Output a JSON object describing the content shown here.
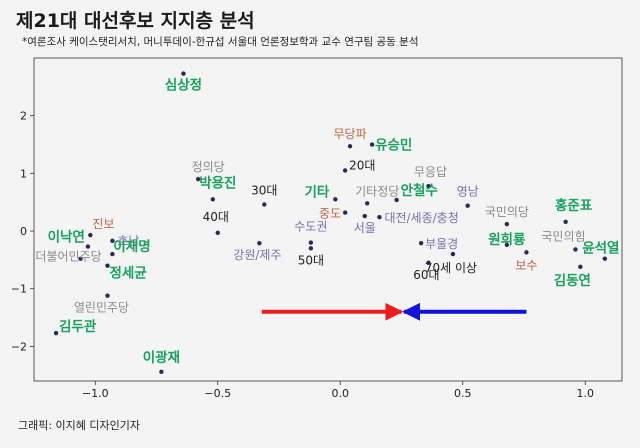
{
  "header": {
    "title": "제21대 대선후보 지지층 분석",
    "subtitle": "*여론조사 케이스탯리서치, 머니투데이-한규섭 서울대 언론정보학과 교수 연구팀 공동 분석"
  },
  "footer": {
    "credit": "그래픽: 이지혜 디자인기자"
  },
  "colors": {
    "politician": "#17a25c",
    "party": "#8a8a8a",
    "age": "#222222",
    "region": "#7b6fb0",
    "ideology": "#c0644a",
    "dot": "#2b2860",
    "arrow_left_group": "#ee1c1c",
    "arrow_right_group": "#1212dd"
  },
  "chart_data": {
    "type": "scatter",
    "xlim": [
      -1.25,
      1.15
    ],
    "ylim": [
      -2.6,
      3.0
    ],
    "x_ticks": [
      -1.0,
      -0.5,
      0.0,
      0.5,
      1.0
    ],
    "x_tick_labels": [
      "−1.0",
      "−0.5",
      "0.0",
      "0.5",
      "1.0"
    ],
    "y_ticks": [
      -2,
      -1,
      0,
      1,
      2
    ],
    "y_tick_labels": [
      "−2",
      "−1",
      "0",
      "1",
      "2"
    ],
    "grid": false,
    "points": [
      {
        "label": "심상정",
        "x": -0.64,
        "y": 2.73,
        "cat": "politician",
        "anchor": "middle",
        "dx": 0,
        "dy": 16
      },
      {
        "label": "무당파",
        "x": 0.04,
        "y": 1.47,
        "cat": "ideology",
        "anchor": "middle",
        "dx": 0,
        "dy": -8
      },
      {
        "label": "유승민",
        "x": 0.13,
        "y": 1.5,
        "cat": "politician",
        "anchor": "start",
        "dx": 3,
        "dy": 5
      },
      {
        "label": "20대",
        "x": 0.02,
        "y": 1.05,
        "cat": "age",
        "anchor": "start",
        "dx": 4,
        "dy": -1
      },
      {
        "label": "무응답",
        "x": 0.36,
        "y": 0.78,
        "cat": "party",
        "anchor": "middle",
        "dx": 2,
        "dy": -10
      },
      {
        "label": "정의당",
        "x": -0.58,
        "y": 0.9,
        "cat": "party",
        "anchor": "middle",
        "dx": 10,
        "dy": -8
      },
      {
        "label": "박용진",
        "x": -0.52,
        "y": 0.55,
        "cat": "politician",
        "anchor": "middle",
        "dx": 5,
        "dy": -12
      },
      {
        "label": "30대",
        "x": -0.31,
        "y": 0.46,
        "cat": "age",
        "anchor": "middle",
        "dx": 0,
        "dy": -10
      },
      {
        "label": "기타",
        "x": -0.02,
        "y": 0.55,
        "cat": "politician",
        "anchor": "end",
        "dx": -6,
        "dy": -3
      },
      {
        "label": "기타정당",
        "x": 0.11,
        "y": 0.48,
        "cat": "party",
        "anchor": "middle",
        "dx": 10,
        "dy": -8
      },
      {
        "label": "안철수",
        "x": 0.23,
        "y": 0.54,
        "cat": "politician",
        "anchor": "start",
        "dx": 4,
        "dy": -5
      },
      {
        "label": "영남",
        "x": 0.52,
        "y": 0.44,
        "cat": "region",
        "anchor": "middle",
        "dx": 0,
        "dy": -10
      },
      {
        "label": "40대",
        "x": -0.5,
        "y": -0.03,
        "cat": "age",
        "anchor": "middle",
        "dx": -2,
        "dy": -12
      },
      {
        "label": "중도",
        "x": 0.02,
        "y": 0.32,
        "cat": "ideology",
        "anchor": "end",
        "dx": -4,
        "dy": 5
      },
      {
        "label": "서울",
        "x": 0.1,
        "y": 0.26,
        "cat": "region",
        "anchor": "middle",
        "dx": 0,
        "dy": 16
      },
      {
        "label": "대전/세종/충청",
        "x": 0.16,
        "y": 0.24,
        "cat": "region",
        "anchor": "start",
        "dx": 5,
        "dy": 5
      },
      {
        "label": "국민의당",
        "x": 0.68,
        "y": 0.12,
        "cat": "party",
        "anchor": "middle",
        "dx": 0,
        "dy": -8
      },
      {
        "label": "홍준표",
        "x": 0.92,
        "y": 0.16,
        "cat": "politician",
        "anchor": "middle",
        "dx": 8,
        "dy": -12
      },
      {
        "label": "진보",
        "x": -1.02,
        "y": -0.07,
        "cat": "ideology",
        "anchor": "start",
        "dx": 2,
        "dy": -7
      },
      {
        "label": "호남",
        "x": -0.93,
        "y": -0.17,
        "cat": "region",
        "anchor": "start",
        "dx": 5,
        "dy": 4
      },
      {
        "label": "이낙연",
        "x": -1.03,
        "y": -0.27,
        "cat": "politician",
        "anchor": "end",
        "dx": -3,
        "dy": -5
      },
      {
        "label": "수도권",
        "x": -0.12,
        "y": -0.2,
        "cat": "region",
        "anchor": "middle",
        "dx": 0,
        "dy": -12
      },
      {
        "label": "강원/제주",
        "x": -0.33,
        "y": -0.21,
        "cat": "region",
        "anchor": "middle",
        "dx": -2,
        "dy": 16
      },
      {
        "label": "50대",
        "x": -0.12,
        "y": -0.3,
        "cat": "age",
        "anchor": "middle",
        "dx": 0,
        "dy": 16
      },
      {
        "label": "부울경",
        "x": 0.33,
        "y": -0.21,
        "cat": "region",
        "anchor": "start",
        "dx": 4,
        "dy": 5
      },
      {
        "label": "원희룡",
        "x": 0.68,
        "y": -0.24,
        "cat": "politician",
        "anchor": "middle",
        "dx": 0,
        "dy": -1
      },
      {
        "label": "국민의힘",
        "x": 0.96,
        "y": -0.32,
        "cat": "party",
        "anchor": "middle",
        "dx": -12,
        "dy": -9
      },
      {
        "label": "윤석열",
        "x": 1.08,
        "y": -0.48,
        "cat": "politician",
        "anchor": "middle",
        "dx": -4,
        "dy": -6
      },
      {
        "label": "60대",
        "x": 0.36,
        "y": -0.55,
        "cat": "age",
        "anchor": "middle",
        "dx": -2,
        "dy": 16
      },
      {
        "label": "70세 이상",
        "x": 0.46,
        "y": -0.4,
        "cat": "age",
        "anchor": "middle",
        "dx": -2,
        "dy": 18
      },
      {
        "label": "보수",
        "x": 0.76,
        "y": -0.37,
        "cat": "ideology",
        "anchor": "middle",
        "dx": 0,
        "dy": 17
      },
      {
        "label": "김동연",
        "x": 0.98,
        "y": -0.62,
        "cat": "politician",
        "anchor": "middle",
        "dx": -8,
        "dy": 18
      },
      {
        "label": "이재명",
        "x": -0.93,
        "y": -0.4,
        "cat": "politician",
        "anchor": "start",
        "dx": 1,
        "dy": -3
      },
      {
        "label": "더불어민주당",
        "x": -1.06,
        "y": -0.48,
        "cat": "party",
        "anchor": "middle",
        "dx": -12,
        "dy": 2
      },
      {
        "label": "정세균",
        "x": -0.95,
        "y": -0.6,
        "cat": "politician",
        "anchor": "start",
        "dx": 2,
        "dy": 12
      },
      {
        "label": "열린민주당",
        "x": -0.95,
        "y": -1.12,
        "cat": "party",
        "anchor": "middle",
        "dx": -6,
        "dy": 16
      },
      {
        "label": "김두관",
        "x": -1.16,
        "y": -1.77,
        "cat": "politician",
        "anchor": "start",
        "dx": 3,
        "dy": -2
      },
      {
        "label": "이광재",
        "x": -0.73,
        "y": -2.44,
        "cat": "politician",
        "anchor": "middle",
        "dx": 0,
        "dy": -10
      }
    ],
    "arrows": [
      {
        "direction": "right",
        "color": "red",
        "x_from": -0.32,
        "x_to": 0.25,
        "y": -1.4
      },
      {
        "direction": "left",
        "color": "blue",
        "x_from": 0.76,
        "x_to": 0.26,
        "y": -1.4
      }
    ]
  }
}
